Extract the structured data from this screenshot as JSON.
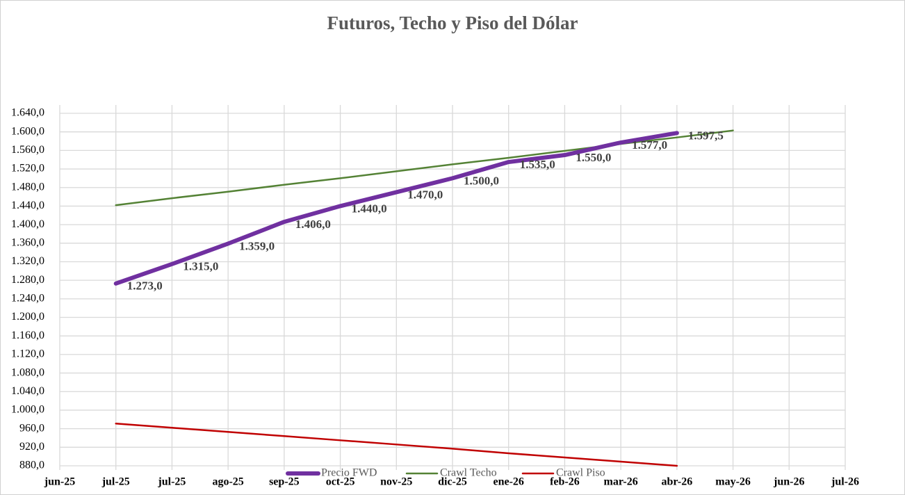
{
  "chart_data": {
    "type": "line",
    "title": "Futuros, Techo y Piso del Dólar",
    "categories": [
      "jun-25",
      "jul-25",
      "jul-25",
      "ago-25",
      "sep-25",
      "oct-25",
      "nov-25",
      "dic-25",
      "ene-26",
      "feb-26",
      "mar-26",
      "abr-26",
      "may-26",
      "jun-26",
      "jul-26"
    ],
    "series": [
      {
        "name": "Precio FWD",
        "color": "#7030a0",
        "values": [
          null,
          1273,
          1315,
          1359,
          1406,
          1440,
          1470,
          1500,
          1535,
          1550,
          1577,
          1597.5,
          null,
          null,
          null
        ],
        "value_labels": [
          null,
          "1.273,0",
          "1.315,0",
          "1.359,0",
          "1.406,0",
          "1.440,0",
          "1.470,0",
          "1.500,0",
          "1.535,0",
          "1.550,0",
          "1.577,0",
          "1.597,5",
          null,
          null,
          null
        ]
      },
      {
        "name": "Crawl Techo",
        "color": "#548235",
        "values": [
          null,
          1442,
          1457,
          1471,
          1486,
          1500,
          1515,
          1530,
          1544,
          1559,
          1574,
          1588,
          1603,
          null,
          null
        ]
      },
      {
        "name": "Crawl Piso",
        "color": "#c00000",
        "values": [
          null,
          971,
          962,
          953,
          944,
          935,
          926,
          917,
          907,
          898,
          889,
          880,
          null,
          null,
          null
        ]
      }
    ],
    "ylim": [
      880,
      1640
    ],
    "yticks": [
      {
        "value": 880,
        "label": "880,0"
      },
      {
        "value": 920,
        "label": "920,0"
      },
      {
        "value": 960,
        "label": "960,0"
      },
      {
        "value": 1000,
        "label": "1.000,0"
      },
      {
        "value": 1040,
        "label": "1.040,0"
      },
      {
        "value": 1080,
        "label": "1.080,0"
      },
      {
        "value": 1120,
        "label": "1.120,0"
      },
      {
        "value": 1160,
        "label": "1.160,0"
      },
      {
        "value": 1200,
        "label": "1.200,0"
      },
      {
        "value": 1240,
        "label": "1.240,0"
      },
      {
        "value": 1280,
        "label": "1.280,0"
      },
      {
        "value": 1320,
        "label": "1.320,0"
      },
      {
        "value": 1360,
        "label": "1.360,0"
      },
      {
        "value": 1400,
        "label": "1.400,0"
      },
      {
        "value": 1440,
        "label": "1.440,0"
      },
      {
        "value": 1480,
        "label": "1.480,0"
      },
      {
        "value": 1520,
        "label": "1.520,0"
      },
      {
        "value": 1560,
        "label": "1.560,0"
      },
      {
        "value": 1600,
        "label": "1.600,0"
      },
      {
        "value": 1640,
        "label": "1.640,0"
      }
    ],
    "grid": true,
    "legend": "bottom"
  }
}
